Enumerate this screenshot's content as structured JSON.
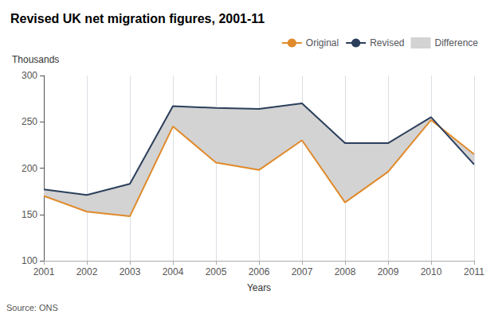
{
  "chart_data": {
    "type": "line",
    "title": "Revised UK net migration figures, 2001-11",
    "xlabel": "Years",
    "ylabel": "Thousands",
    "annotations": [
      "Source: ONS"
    ],
    "x": [
      2001,
      2002,
      2003,
      2004,
      2005,
      2006,
      2007,
      2008,
      2009,
      2010,
      2011
    ],
    "series": [
      {
        "name": "Original",
        "color": "#E08A2A",
        "values": [
          170,
          153,
          148,
          245,
          206,
          198,
          230,
          163,
          196,
          252,
          215
        ]
      },
      {
        "name": "Revised",
        "color": "#2B3F5C",
        "values": [
          177,
          171,
          183,
          267,
          265,
          264,
          270,
          227,
          227,
          255,
          204
        ]
      },
      {
        "name": "Difference",
        "type": "fill_between",
        "color": "#D3D3D3",
        "between": [
          "Original",
          "Revised"
        ]
      }
    ],
    "xlim": [
      2001,
      2011
    ],
    "xticks": [
      2001,
      2002,
      2003,
      2004,
      2005,
      2006,
      2007,
      2008,
      2009,
      2010,
      2011
    ],
    "ylim": [
      100,
      300
    ],
    "yticks": [
      100,
      150,
      200,
      250,
      300
    ],
    "grid": "x",
    "legend": "top"
  }
}
